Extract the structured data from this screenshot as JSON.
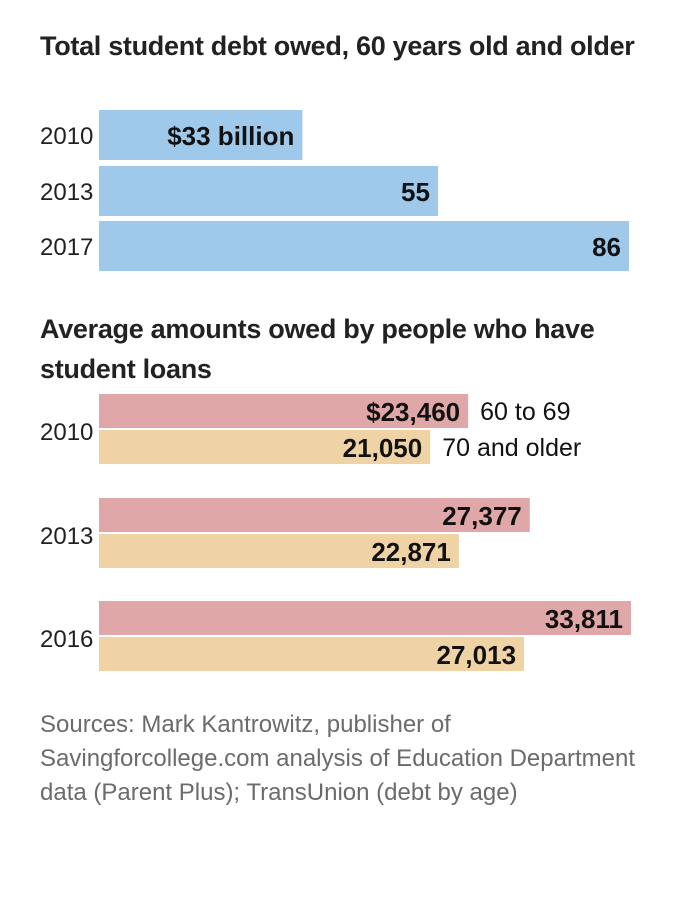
{
  "chart_data": [
    {
      "type": "bar",
      "orientation": "horizontal",
      "title": "Total student debt owed, 60 years old and older",
      "categories": [
        "2010",
        "2013",
        "2017"
      ],
      "values": [
        33,
        55,
        86
      ],
      "value_labels": [
        "$33 billion",
        "55",
        "86"
      ],
      "unit": "billion dollars",
      "color": "#9ec9ea"
    },
    {
      "type": "bar",
      "orientation": "horizontal",
      "title": "Average amounts owed by people who have student loans",
      "categories": [
        "2010",
        "2013",
        "2016"
      ],
      "series": [
        {
          "name": "60 to 69",
          "values": [
            23460,
            27377,
            33811
          ],
          "labels": [
            "$23,460",
            "27,377",
            "33,811"
          ],
          "color": "#e0a7a8"
        },
        {
          "name": "70 and older",
          "values": [
            21050,
            22871,
            27013
          ],
          "labels": [
            "21,050",
            "22,871",
            "27,013"
          ],
          "color": "#efd3a4"
        }
      ],
      "legend_placement": "right of first group"
    }
  ],
  "source": "Sources: Mark Kantrowitz, publisher of Savingforcollege.com analysis of Education Department data (Parent Plus); TransUnion (debt by age)"
}
